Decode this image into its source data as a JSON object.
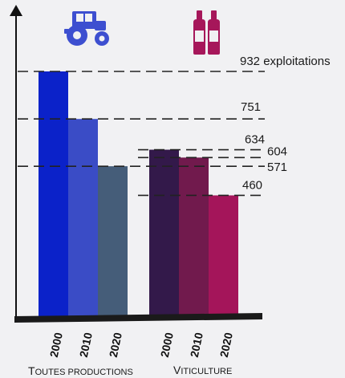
{
  "chart_data": {
    "type": "bar",
    "groups": [
      {
        "name": "Toutes productions",
        "icon": "tractor-icon",
        "categories": [
          "2000",
          "2010",
          "2020"
        ],
        "values": [
          932,
          751,
          571
        ],
        "colors": [
          "#0b22c9",
          "#3a4cc6",
          "#455d79"
        ]
      },
      {
        "name": "Viticulture",
        "icon": "wine-bottles-icon",
        "categories": [
          "2000",
          "2010",
          "2020"
        ],
        "values": [
          634,
          604,
          460
        ],
        "colors": [
          "#33194a",
          "#711a4d",
          "#a4155a"
        ]
      }
    ],
    "value_labels": [
      "932 exploitations",
      "751",
      "634",
      "604",
      "571",
      "460"
    ],
    "ylim": [
      0,
      1000
    ],
    "grid": false,
    "colors": {
      "tractor_icon": "#3d4fd0",
      "wine_icon": "#a6175a",
      "axis": "#111111",
      "dash": "#222222"
    }
  }
}
